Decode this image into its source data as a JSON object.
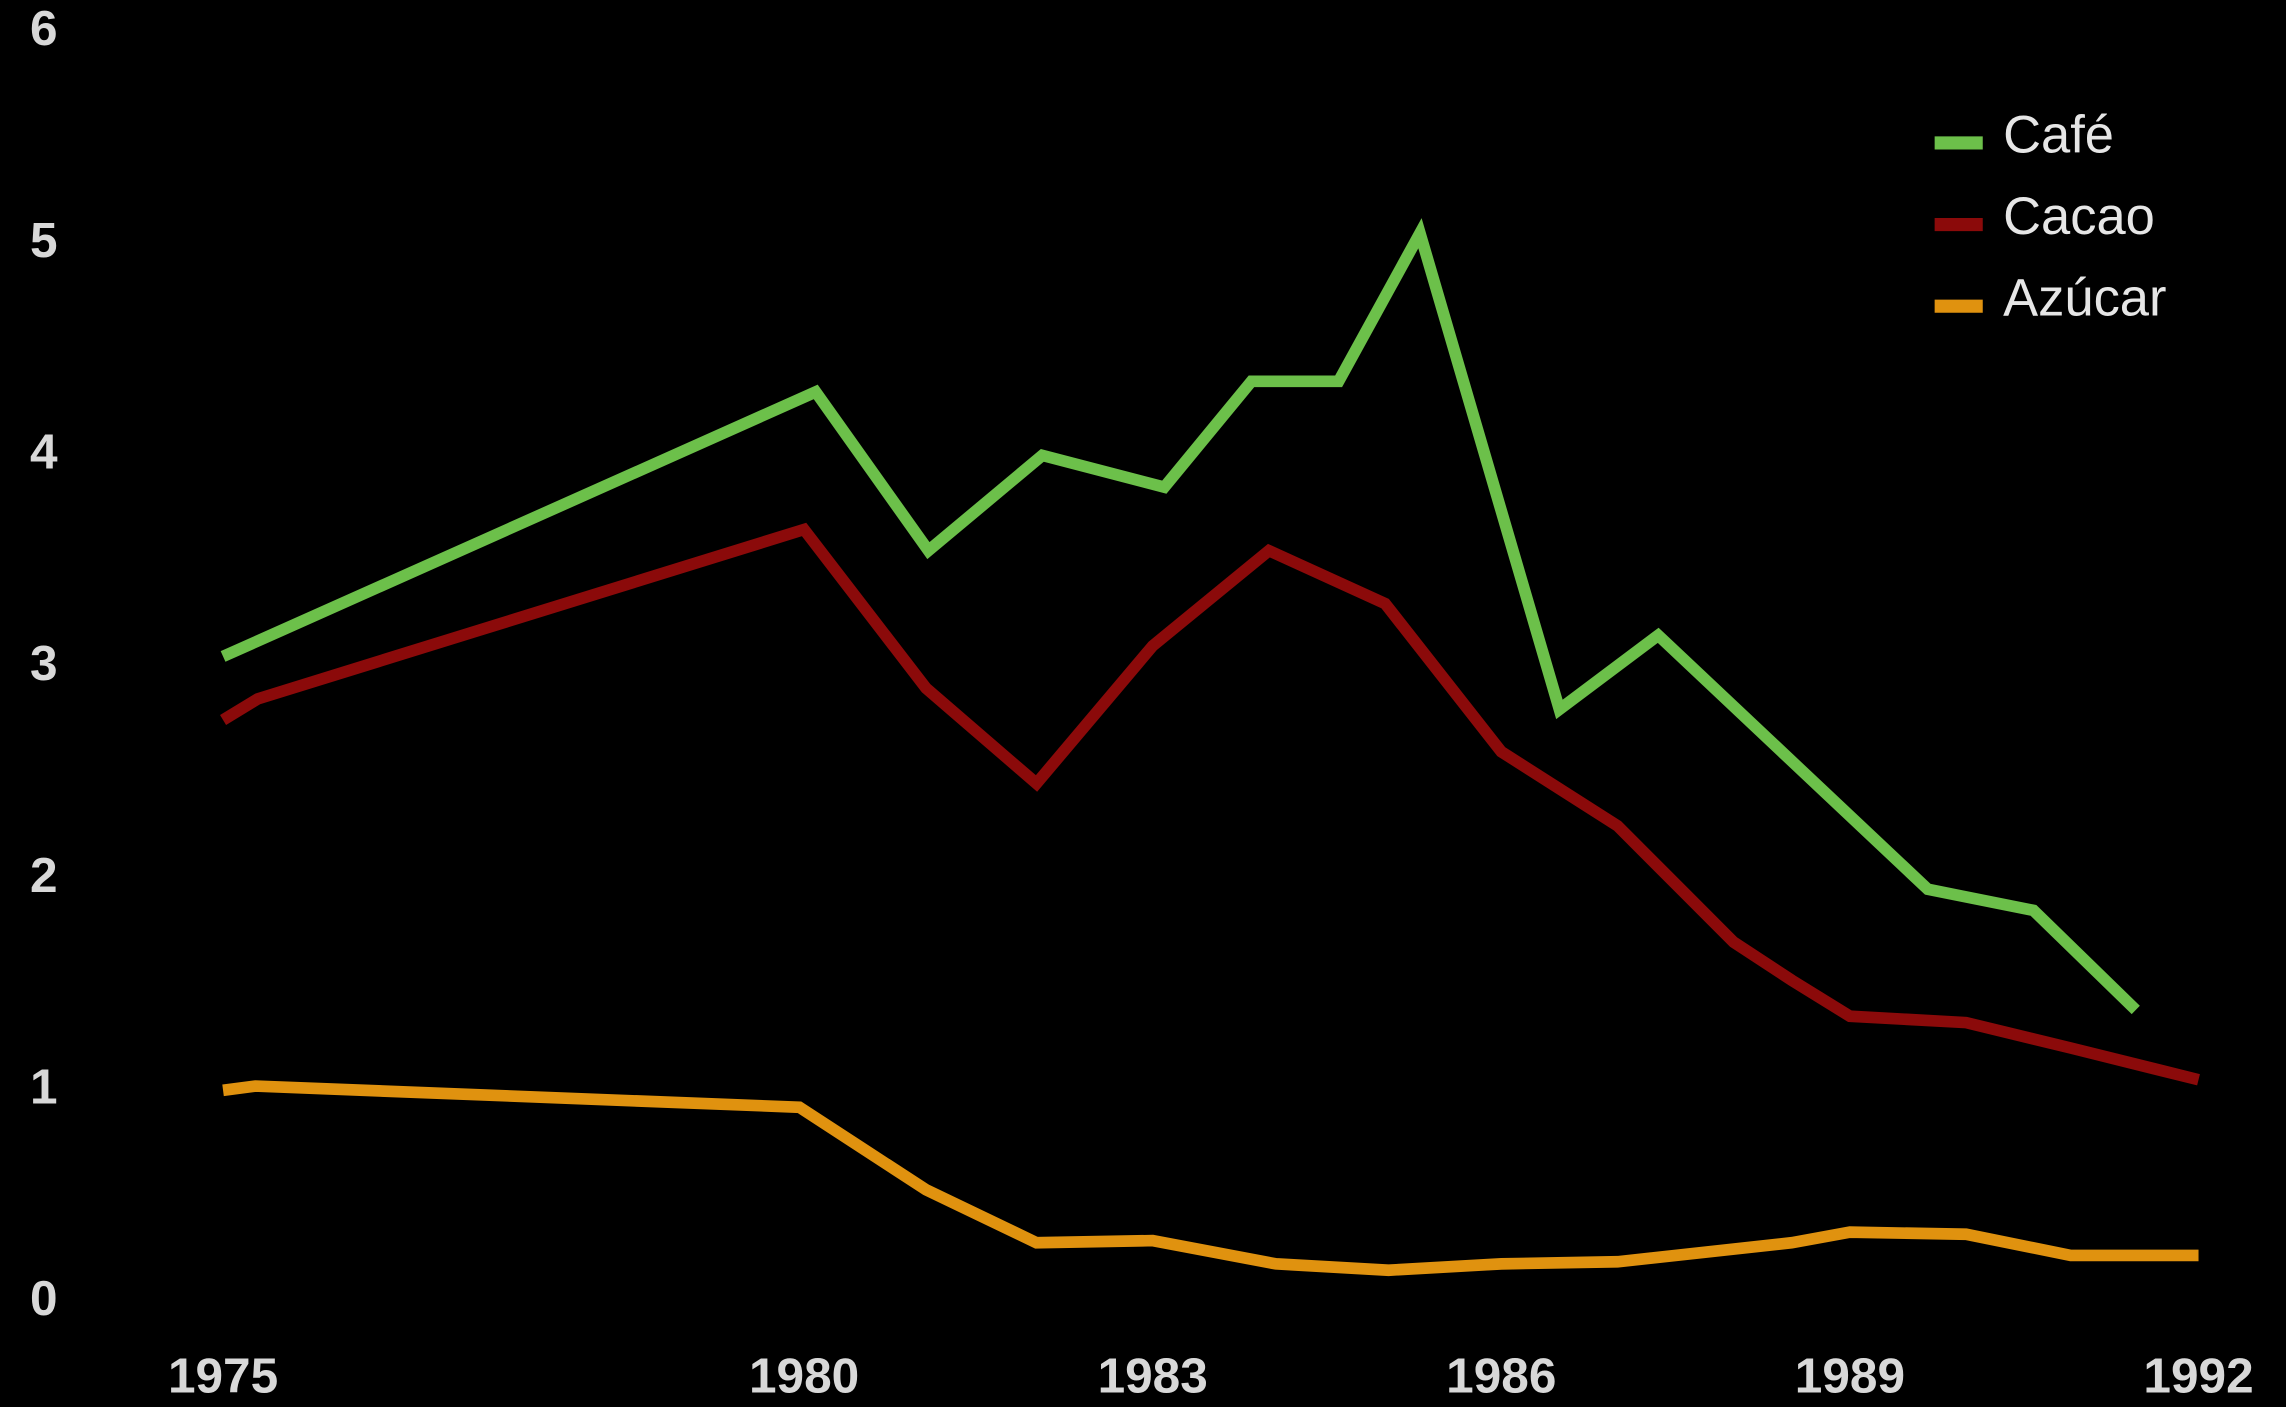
{
  "chart_data": {
    "type": "line",
    "xlim": [
      1975,
      1992
    ],
    "xticks": [
      1975,
      1980,
      1983,
      1986,
      1989,
      1992
    ],
    "ylim": [
      0,
      6
    ],
    "yticks": [
      0,
      1,
      2,
      3,
      4,
      5,
      6
    ],
    "legend": "top-right",
    "series": [
      {
        "name": "Café",
        "color": "#6cc04a",
        "x": [
          1975,
          1980.1,
          1981.07,
          1982.05,
          1983.1,
          1983.85,
          1984.6,
          1985.3,
          1986.5,
          1987.35,
          1989.67,
          1990.58,
          1991.46
        ],
        "values": [
          3.05,
          4.3,
          3.55,
          4.0,
          3.85,
          4.35,
          4.35,
          5.05,
          2.8,
          3.15,
          1.95,
          1.85,
          1.38
        ]
      },
      {
        "name": "Cacao",
        "color": "#8b0a0a",
        "x": [
          1975,
          1975.3,
          1980,
          1981.05,
          1982,
          1983,
          1984,
          1985,
          1986,
          1987,
          1988,
          1988.5,
          1989,
          1990,
          1990.9,
          1992
        ],
        "values": [
          2.75,
          2.85,
          3.65,
          2.9,
          2.45,
          3.1,
          3.55,
          3.3,
          2.6,
          2.25,
          1.7,
          1.52,
          1.35,
          1.32,
          1.2,
          1.05
        ]
      },
      {
        "name": "Azúcar",
        "color": "#e0920f",
        "x": [
          1975,
          1975.28,
          1979.96,
          1981.05,
          1982,
          1983,
          1984.06,
          1985.03,
          1986,
          1987,
          1988.5,
          1989,
          1990,
          1990.9,
          1992
        ],
        "values": [
          1.0,
          1.02,
          0.92,
          0.53,
          0.28,
          0.29,
          0.18,
          0.15,
          0.18,
          0.19,
          0.28,
          0.33,
          0.32,
          0.22,
          0.22
        ]
      }
    ]
  }
}
